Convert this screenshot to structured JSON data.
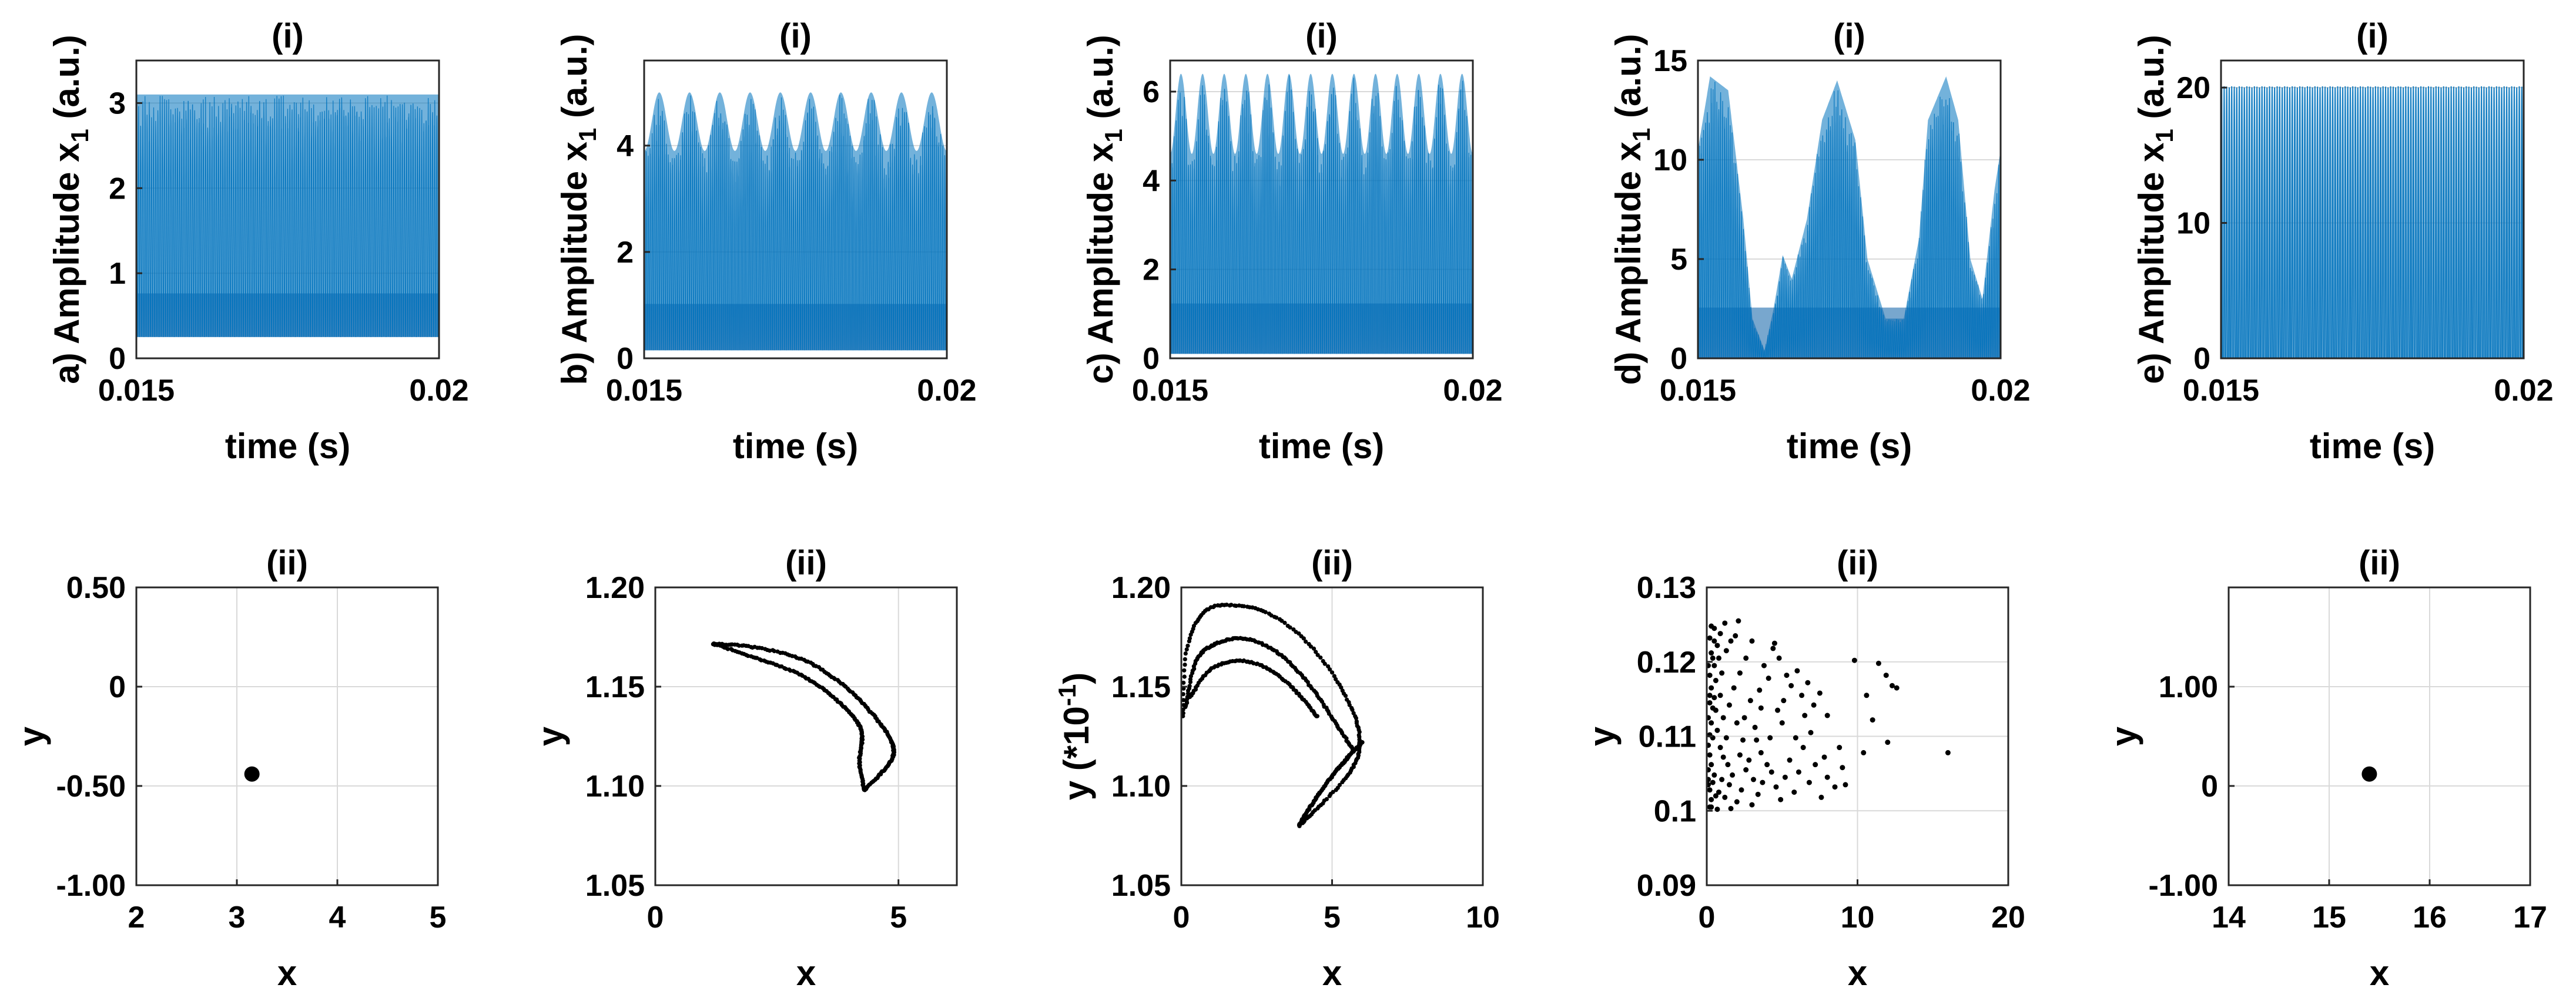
{
  "chart_data": [
    {
      "id": "a",
      "type": "line",
      "panel_label": "a)",
      "title": "(i)",
      "xlabel": "time (s)",
      "ylabel": "Amplitude x",
      "ylabel_sub": "1",
      "ylabel_suffix": " (a.u.)",
      "xlim": [
        0.015,
        0.02
      ],
      "ylim": [
        0,
        3.5
      ],
      "xticks": [
        0.015,
        0.02
      ],
      "xtick_labels": [
        "0.015",
        "0.02"
      ],
      "yticks": [
        0,
        1,
        2,
        3
      ],
      "ytick_labels": [
        "0",
        "1",
        "2",
        "3"
      ],
      "grid": true,
      "color": "#0072BD",
      "signal": {
        "min": 0.25,
        "max": 3.1,
        "cycles": 140,
        "pattern": "dense"
      }
    },
    {
      "id": "b",
      "type": "line",
      "panel_label": "b)",
      "title": "(i)",
      "xlabel": "time (s)",
      "ylabel": "Amplitude x",
      "ylabel_sub": "1",
      "ylabel_suffix": " (a.u.)",
      "xlim": [
        0.015,
        0.02
      ],
      "ylim": [
        0,
        5.6
      ],
      "xticks": [
        0.015,
        0.02
      ],
      "xtick_labels": [
        "0.015",
        "0.02"
      ],
      "yticks": [
        0,
        2,
        4
      ],
      "ytick_labels": [
        "0",
        "2",
        "4"
      ],
      "grid": true,
      "color": "#0072BD",
      "signal": {
        "min": 0.15,
        "max": 5.0,
        "envelope_low": 3.9,
        "envelope_periods": 10,
        "cycles": 150,
        "pattern": "modulated"
      }
    },
    {
      "id": "c",
      "type": "line",
      "panel_label": "c)",
      "title": "(i)",
      "xlabel": "time (s)",
      "ylabel": "Amplitude x",
      "ylabel_sub": "1",
      "ylabel_suffix": " (a.u.)",
      "xlim": [
        0.015,
        0.02
      ],
      "ylim": [
        0,
        6.7
      ],
      "xticks": [
        0.015,
        0.02
      ],
      "xtick_labels": [
        "0.015",
        "0.02"
      ],
      "yticks": [
        0,
        2,
        4,
        6
      ],
      "ytick_labels": [
        "0",
        "2",
        "4",
        "6"
      ],
      "grid": true,
      "color": "#0072BD",
      "signal": {
        "min": 0.1,
        "max": 6.4,
        "envelope_low": 4.6,
        "envelope_periods": 14,
        "cycles": 150,
        "pattern": "modulated"
      }
    },
    {
      "id": "d",
      "type": "line",
      "panel_label": "d)",
      "title": "(i)",
      "xlabel": "time (s)",
      "ylabel": "Amplitude x",
      "ylabel_sub": "1",
      "ylabel_suffix": " (a.u.)",
      "xlim": [
        0.015,
        0.02
      ],
      "ylim": [
        0,
        15
      ],
      "xticks": [
        0.015,
        0.02
      ],
      "xtick_labels": [
        "0.015",
        "0.02"
      ],
      "yticks": [
        0,
        5,
        10,
        15
      ],
      "ytick_labels": [
        "0",
        "5",
        "10",
        "15"
      ],
      "grid": true,
      "color": "#0072BD",
      "signal": {
        "min": 0.0,
        "max": 14.2,
        "cycles": 160,
        "pattern": "bursting",
        "envelope_points": [
          [
            0.015,
            10.5
          ],
          [
            0.0152,
            14.2
          ],
          [
            0.0155,
            13.5
          ],
          [
            0.01575,
            7
          ],
          [
            0.0159,
            2
          ],
          [
            0.0161,
            0.4
          ],
          [
            0.01625,
            2.5
          ],
          [
            0.0164,
            5.2
          ],
          [
            0.01655,
            4
          ],
          [
            0.0168,
            7
          ],
          [
            0.01705,
            12
          ],
          [
            0.0173,
            14
          ],
          [
            0.0176,
            11
          ],
          [
            0.0178,
            5
          ],
          [
            0.0181,
            2
          ],
          [
            0.0184,
            2
          ],
          [
            0.01865,
            6
          ],
          [
            0.0188,
            12
          ],
          [
            0.0191,
            14.2
          ],
          [
            0.0193,
            12
          ],
          [
            0.0195,
            5
          ],
          [
            0.0197,
            3
          ],
          [
            0.0199,
            8.5
          ],
          [
            0.02,
            10.5
          ]
        ]
      }
    },
    {
      "id": "e",
      "type": "line",
      "panel_label": "e)",
      "title": "(i)",
      "xlabel": "time (s)",
      "ylabel": "Amplitude x",
      "ylabel_sub": "1",
      "ylabel_suffix": " (a.u.)",
      "xlim": [
        0.015,
        0.02
      ],
      "ylim": [
        0,
        22
      ],
      "xticks": [
        0.015,
        0.02
      ],
      "xtick_labels": [
        "0.015",
        "0.02"
      ],
      "yticks": [
        0,
        10,
        20
      ],
      "ytick_labels": [
        "0",
        "10",
        "20"
      ],
      "grid": true,
      "color": "#0072BD",
      "signal": {
        "min": 0.0,
        "max": 20.1,
        "cycles": 120,
        "pattern": "regular"
      }
    },
    {
      "id": "a2",
      "type": "scatter",
      "title": "(ii)",
      "xlabel": "x",
      "ylabel": "y",
      "xlim": [
        2,
        5
      ],
      "ylim": [
        -1,
        0.5
      ],
      "xticks": [
        2,
        3,
        4,
        5
      ],
      "xtick_labels": [
        "2",
        "3",
        "4",
        "5"
      ],
      "yticks": [
        -1,
        -0.5,
        0,
        0.5
      ],
      "ytick_labels": [
        "-1.00",
        "-0.50",
        "0",
        "0.50"
      ],
      "grid": true,
      "color": "#000000",
      "points": [
        [
          3.15,
          -0.44
        ]
      ],
      "marker_size": 13
    },
    {
      "id": "b2",
      "type": "scatter",
      "title": "(ii)",
      "xlabel": "x",
      "ylabel": "y",
      "xlim": [
        0,
        6.2
      ],
      "ylim": [
        1.05,
        1.2
      ],
      "xticks": [
        0,
        5
      ],
      "xtick_labels": [
        "0",
        "5"
      ],
      "yticks": [
        1.05,
        1.1,
        1.15,
        1.2
      ],
      "ytick_labels": [
        "1.05",
        "1.10",
        "1.15",
        "1.20"
      ],
      "grid": true,
      "color": "#000000",
      "marker_size": 3.6,
      "curves": [
        {
          "n": 160,
          "points": [
            [
              1.2,
              1.1715
            ],
            [
              2.0,
              1.17
            ],
            [
              3.0,
              1.164
            ],
            [
              3.8,
              1.152
            ],
            [
              4.4,
              1.138
            ],
            [
              4.8,
              1.125
            ],
            [
              4.9,
              1.116
            ],
            [
              4.7,
              1.108
            ],
            [
              4.3,
              1.098
            ]
          ]
        },
        {
          "n": 140,
          "points": [
            [
              1.2,
              1.1715
            ],
            [
              2.0,
              1.165
            ],
            [
              2.9,
              1.157
            ],
            [
              3.6,
              1.146
            ],
            [
              4.1,
              1.134
            ],
            [
              4.25,
              1.125
            ],
            [
              4.2,
              1.112
            ],
            [
              4.3,
              1.098
            ]
          ]
        }
      ]
    },
    {
      "id": "c2",
      "type": "scatter",
      "title": "(ii)",
      "xlabel": "x",
      "ylabel": "y (*10",
      "ylabel_sup": "-1",
      "ylabel_suffix": ")",
      "xlim": [
        0,
        10
      ],
      "ylim": [
        1.05,
        1.2
      ],
      "xticks": [
        0,
        5,
        10
      ],
      "xtick_labels": [
        "0",
        "5",
        "10"
      ],
      "yticks": [
        1.05,
        1.1,
        1.15,
        1.2
      ],
      "ytick_labels": [
        "1.05",
        "1.10",
        "1.15",
        "1.20"
      ],
      "grid": true,
      "color": "#000000",
      "marker_size": 3.6,
      "curves": [
        {
          "n": 150,
          "points": [
            [
              0.05,
              1.135
            ],
            [
              0.2,
              1.17
            ],
            [
              0.8,
              1.188
            ],
            [
              1.8,
              1.191
            ],
            [
              3.0,
              1.186
            ],
            [
              4.2,
              1.172
            ],
            [
              5.2,
              1.152
            ],
            [
              5.8,
              1.133
            ],
            [
              5.9,
              1.118
            ],
            [
              5.5,
              1.105
            ],
            [
              4.6,
              1.09
            ],
            [
              3.9,
              1.08
            ]
          ]
        },
        {
          "n": 130,
          "points": [
            [
              0.15,
              1.14
            ],
            [
              0.5,
              1.163
            ],
            [
              1.2,
              1.172
            ],
            [
              2.2,
              1.174
            ],
            [
              3.3,
              1.166
            ],
            [
              4.3,
              1.15
            ],
            [
              5.1,
              1.132
            ],
            [
              5.7,
              1.118
            ]
          ]
        },
        {
          "n": 110,
          "points": [
            [
              3.9,
              1.08
            ],
            [
              4.3,
              1.09
            ],
            [
              4.9,
              1.103
            ],
            [
              5.5,
              1.114
            ],
            [
              6.0,
              1.122
            ]
          ]
        },
        {
          "n": 80,
          "points": [
            [
              0.3,
              1.145
            ],
            [
              1.0,
              1.159
            ],
            [
              2.0,
              1.163
            ],
            [
              3.0,
              1.158
            ],
            [
              3.9,
              1.146
            ],
            [
              4.5,
              1.135
            ]
          ]
        }
      ]
    },
    {
      "id": "d2",
      "type": "scatter",
      "title": "(ii)",
      "xlabel": "x",
      "ylabel": "y",
      "xlim": [
        0,
        20
      ],
      "ylim": [
        0.09,
        0.13
      ],
      "xticks": [
        0,
        10,
        20
      ],
      "xtick_labels": [
        "0",
        "10",
        "20"
      ],
      "yticks": [
        0.09,
        0.1,
        0.11,
        0.12,
        0.13
      ],
      "ytick_labels": [
        "0.09",
        "0.1",
        "0.11",
        "0.12",
        "0.13"
      ],
      "grid": true,
      "color": "#000000",
      "marker_size": 4.5,
      "points": [
        [
          0.1,
          0.1035
        ],
        [
          0.2,
          0.1028
        ],
        [
          0.1,
          0.1042
        ],
        [
          0.3,
          0.1015
        ],
        [
          0.2,
          0.1005
        ],
        [
          0.4,
          0.1038
        ],
        [
          0.1,
          0.1055
        ],
        [
          0.3,
          0.1062
        ],
        [
          0.2,
          0.1075
        ],
        [
          0.5,
          0.1048
        ],
        [
          0.6,
          0.102
        ],
        [
          0.1,
          0.1088
        ],
        [
          0.2,
          0.1102
        ],
        [
          0.3,
          0.1118
        ],
        [
          0.1,
          0.1125
        ],
        [
          0.4,
          0.1138
        ],
        [
          0.2,
          0.1145
        ],
        [
          0.5,
          0.1152
        ],
        [
          0.3,
          0.1165
        ],
        [
          0.6,
          0.1175
        ],
        [
          0.2,
          0.1182
        ],
        [
          0.1,
          0.1195
        ],
        [
          0.4,
          0.1205
        ],
        [
          0.3,
          0.1212
        ],
        [
          0.7,
          0.1222
        ],
        [
          0.2,
          0.1232
        ],
        [
          0.9,
          0.1238
        ],
        [
          0.5,
          0.1245
        ],
        [
          1.2,
          0.1252
        ],
        [
          0.8,
          0.1205
        ],
        [
          1.0,
          0.1185
        ],
        [
          1.3,
          0.1215
        ],
        [
          1.6,
          0.1228
        ],
        [
          2.1,
          0.1255
        ],
        [
          1.9,
          0.1235
        ],
        [
          0.7,
          0.1108
        ],
        [
          0.9,
          0.1085
        ],
        [
          1.1,
          0.1072
        ],
        [
          1.0,
          0.1042
        ],
        [
          0.8,
          0.1025
        ],
        [
          1.2,
          0.1018
        ],
        [
          1.5,
          0.1035
        ],
        [
          1.4,
          0.1062
        ],
        [
          1.7,
          0.1048
        ],
        [
          2.0,
          0.1012
        ],
        [
          2.3,
          0.1028
        ],
        [
          2.6,
          0.1055
        ],
        [
          2.2,
          0.1075
        ],
        [
          2.8,
          0.1068
        ],
        [
          3.1,
          0.1042
        ],
        [
          3.4,
          0.1022
        ],
        [
          3.0,
          0.1008
        ],
        [
          3.7,
          0.1038
        ],
        [
          4.0,
          0.1062
        ],
        [
          3.6,
          0.1078
        ],
        [
          4.3,
          0.1052
        ],
        [
          4.6,
          0.1032
        ],
        [
          4.9,
          0.1015
        ],
        [
          5.2,
          0.1045
        ],
        [
          5.5,
          0.1068
        ],
        [
          5.8,
          0.1025
        ],
        [
          6.1,
          0.1052
        ],
        [
          6.4,
          0.1085
        ],
        [
          6.8,
          0.1038
        ],
        [
          7.2,
          0.1062
        ],
        [
          7.6,
          0.1018
        ],
        [
          8.0,
          0.1045
        ],
        [
          8.5,
          0.1032
        ],
        [
          9.0,
          0.1058
        ],
        [
          3.2,
          0.1112
        ],
        [
          2.5,
          0.1125
        ],
        [
          2.9,
          0.1148
        ],
        [
          3.5,
          0.1162
        ],
        [
          4.1,
          0.1178
        ],
        [
          3.8,
          0.1195
        ],
        [
          4.4,
          0.1218
        ],
        [
          4.8,
          0.1205
        ],
        [
          5.3,
          0.1182
        ],
        [
          5.6,
          0.1168
        ],
        [
          6.0,
          0.1188
        ],
        [
          6.3,
          0.1155
        ],
        [
          6.7,
          0.1172
        ],
        [
          7.1,
          0.1142
        ],
        [
          7.5,
          0.1158
        ],
        [
          8.0,
          0.1128
        ],
        [
          4.7,
          0.1135
        ],
        [
          5.0,
          0.1118
        ],
        [
          2.2,
          0.1185
        ],
        [
          2.6,
          0.1205
        ],
        [
          3.0,
          0.1228
        ],
        [
          1.8,
          0.1165
        ],
        [
          1.5,
          0.1142
        ],
        [
          2.0,
          0.1118
        ],
        [
          9.8,
          0.1202
        ],
        [
          10.6,
          0.1155
        ],
        [
          11.4,
          0.1198
        ],
        [
          11.9,
          0.1182
        ],
        [
          12.3,
          0.1168
        ],
        [
          12.6,
          0.1165
        ],
        [
          11.0,
          0.1122
        ],
        [
          12.0,
          0.1092
        ],
        [
          10.4,
          0.1078
        ],
        [
          16.0,
          0.1078
        ],
        [
          9.2,
          0.1035
        ],
        [
          3.3,
          0.1095
        ],
        [
          5.9,
          0.1098
        ],
        [
          6.9,
          0.1105
        ],
        [
          4.2,
          0.1098
        ],
        [
          7.8,
          0.1072
        ],
        [
          8.8,
          0.1085
        ],
        [
          2.4,
          0.1095
        ],
        [
          1.3,
          0.1098
        ],
        [
          0.6,
          0.1135
        ],
        [
          0.9,
          0.1155
        ],
        [
          0.5,
          0.1195
        ],
        [
          1.1,
          0.1125
        ],
        [
          3.6,
          0.1138
        ],
        [
          4.5,
          0.1225
        ],
        [
          5.1,
          0.1148
        ],
        [
          6.5,
          0.1128
        ],
        [
          0.3,
          0.1005
        ],
        [
          0.7,
          0.1002
        ],
        [
          1.6,
          0.1003
        ],
        [
          0.4,
          0.1098
        ],
        [
          0.2,
          0.1155
        ],
        [
          0.5,
          0.1228
        ],
        [
          0.3,
          0.1248
        ]
      ]
    },
    {
      "id": "e2",
      "type": "scatter",
      "title": "(ii)",
      "xlabel": "x",
      "ylabel": "y",
      "xlim": [
        14,
        17
      ],
      "ylim": [
        -1,
        2
      ],
      "xticks": [
        14,
        15,
        16,
        17
      ],
      "xtick_labels": [
        "14",
        "15",
        "16",
        "17"
      ],
      "yticks": [
        -1,
        0,
        1
      ],
      "ytick_labels": [
        "-1.00",
        "0",
        "1.00"
      ],
      "grid": true,
      "color": "#000000",
      "points": [
        [
          15.4,
          0.12
        ]
      ],
      "marker_size": 13
    }
  ]
}
